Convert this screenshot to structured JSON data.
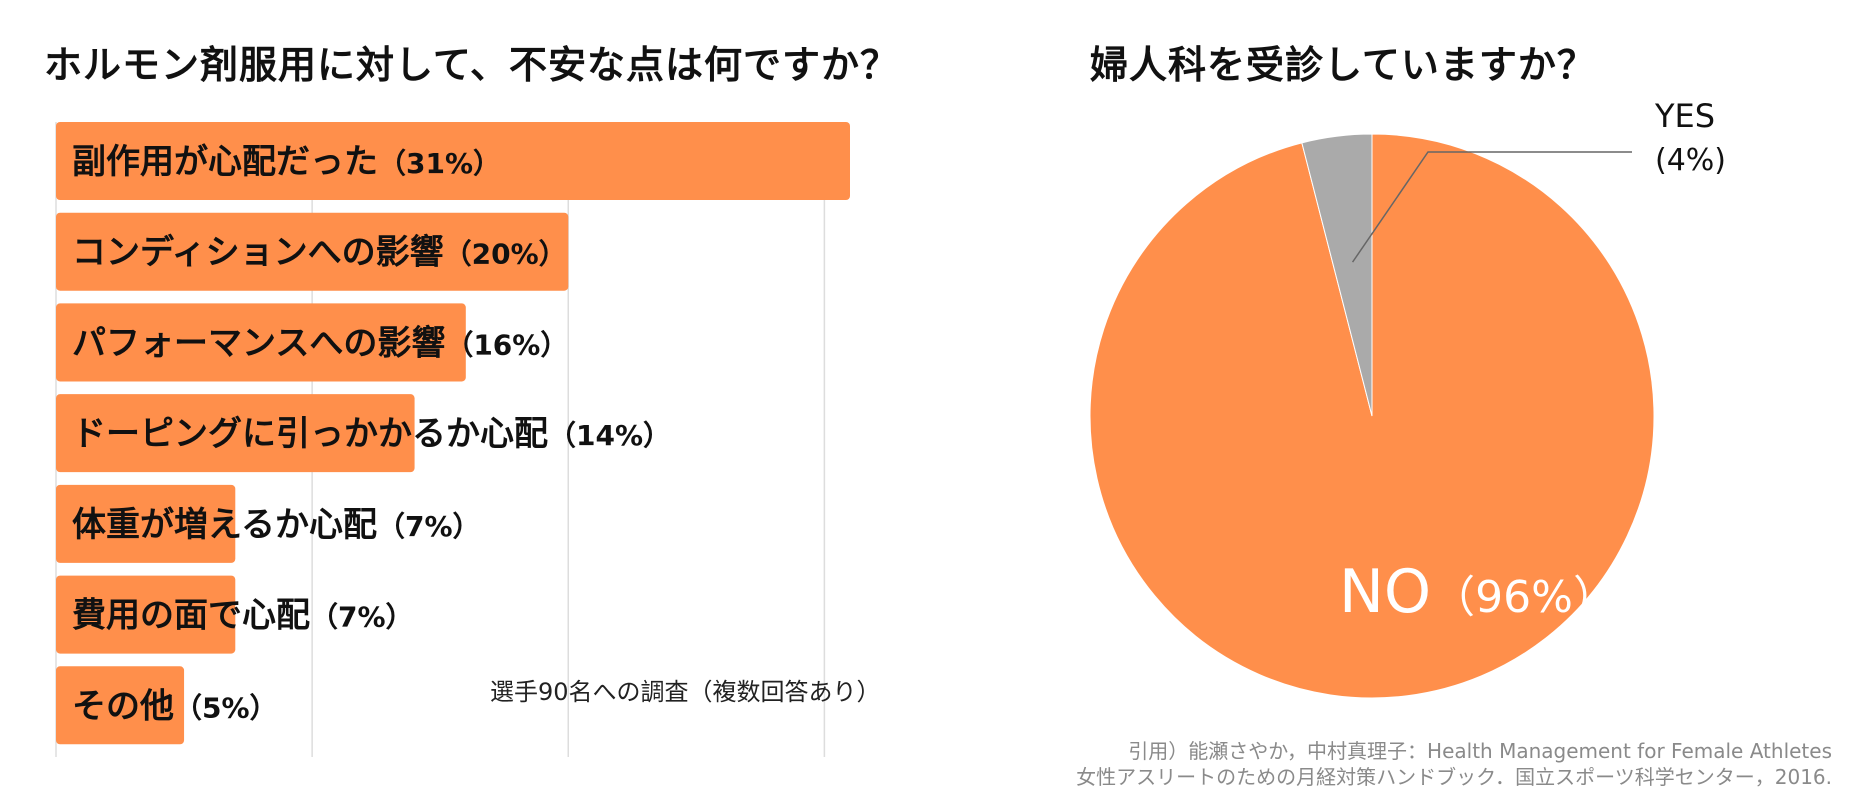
{
  "chart_data": [
    {
      "type": "bar",
      "orientation": "horizontal",
      "title": "ホルモン剤服用に対して、不安な点は何ですか？",
      "categories": [
        "副作用が心配だった",
        "コンディションへの影響",
        "パフォーマンスへの影響",
        "ドーピングに引っかかるか心配",
        "体重が増えるか心配",
        "費用の面で心配",
        "その他"
      ],
      "values": [
        31,
        20,
        16,
        14,
        7,
        7,
        5
      ],
      "value_labels": [
        "（31%）",
        "（20%）",
        "（16%）",
        "（14%）",
        "（7%）",
        "（7%）",
        "（5%）"
      ],
      "unit": "%",
      "xlim": [
        0,
        31
      ],
      "grid": true,
      "note": "選手90名への調査（複数回答あり）",
      "colors": {
        "bar": "#FF8F4B",
        "grid": "#DDDDDD"
      }
    },
    {
      "type": "pie",
      "title": "婦人科を受診していますか？",
      "slices": [
        {
          "label": "NO",
          "value": 96,
          "value_label": "（96%）",
          "color": "#FF8F4B"
        },
        {
          "label": "YES",
          "value": 4,
          "value_label": "(4%)",
          "color": "#AAAAAA"
        }
      ]
    }
  ],
  "citation": {
    "line1": "引用）能瀬さやか，中村真理子：Health Management for Female Athletes",
    "line2": "女性アスリートのための月経対策ハンドブック．国立スポーツ科学センター，2016."
  }
}
